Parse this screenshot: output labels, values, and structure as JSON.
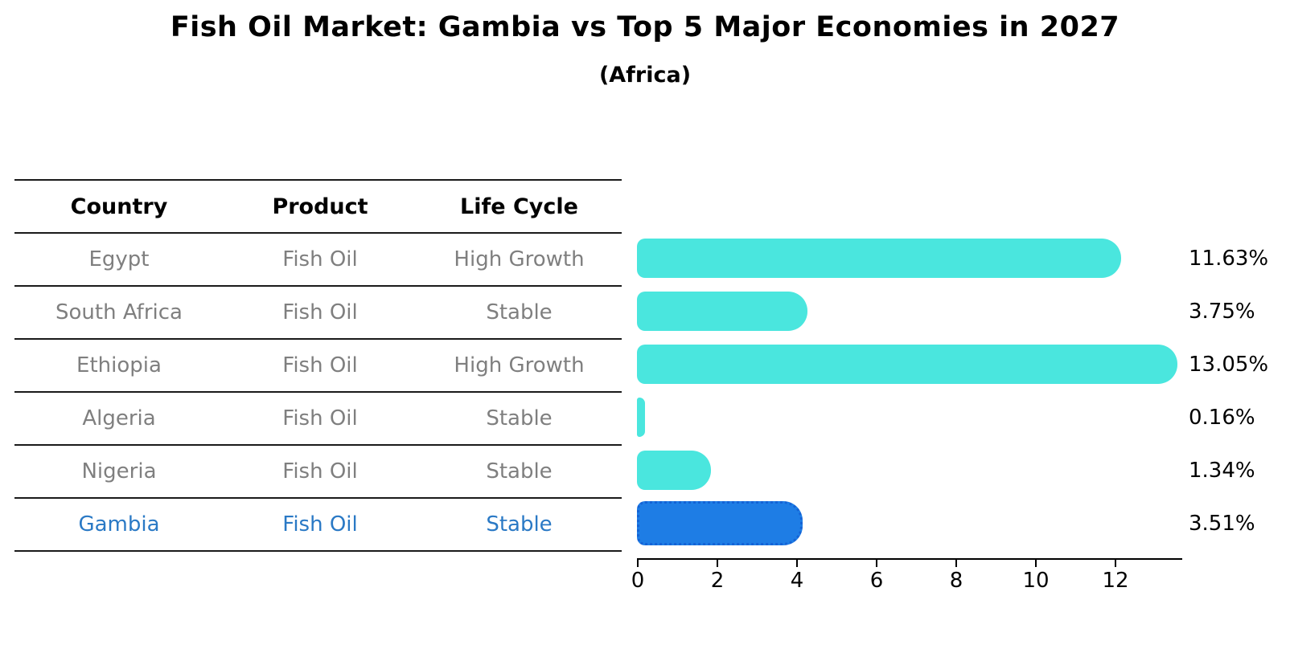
{
  "title": "Fish Oil Market: Gambia vs Top 5 Major Economies in 2027",
  "subtitle": "(Africa)",
  "table": {
    "headers": [
      "Country",
      "Product",
      "Life Cycle"
    ],
    "rows": [
      {
        "country": "Egypt",
        "product": "Fish Oil",
        "life_cycle": "High Growth",
        "highlight": false
      },
      {
        "country": "South Africa",
        "product": "Fish Oil",
        "life_cycle": "Stable",
        "highlight": false
      },
      {
        "country": "Ethiopia",
        "product": "Fish Oil",
        "life_cycle": "High Growth",
        "highlight": false
      },
      {
        "country": "Algeria",
        "product": "Fish Oil",
        "life_cycle": "Stable",
        "highlight": false
      },
      {
        "country": "Nigeria",
        "product": "Fish Oil",
        "life_cycle": "Stable",
        "highlight": false
      },
      {
        "country": "Gambia",
        "product": "Fish Oil",
        "life_cycle": "Stable",
        "highlight": true
      }
    ]
  },
  "chart_data": {
    "type": "bar",
    "orientation": "horizontal",
    "title": "Fish Oil Market: Gambia vs Top 5 Major Economies in 2027",
    "subtitle": "(Africa)",
    "categories": [
      "Egypt",
      "South Africa",
      "Ethiopia",
      "Algeria",
      "Nigeria",
      "Gambia"
    ],
    "values": [
      11.63,
      3.75,
      13.05,
      0.16,
      1.34,
      3.51
    ],
    "value_labels": [
      "11.63%",
      "3.75%",
      "13.05%",
      "0.16%",
      "1.34%",
      "3.51%"
    ],
    "x_ticks": [
      0,
      2,
      4,
      6,
      8,
      10,
      12
    ],
    "xlim": [
      0,
      13.66
    ],
    "grid": false,
    "legend": "none",
    "highlight_index": 5
  },
  "colors": {
    "bar": "#4ae6de",
    "highlight_bar": "#1e7de5",
    "highlight_border": "#1463d6",
    "highlight_text": "#2a79c5",
    "table_text": "#7f7f7f",
    "axis": "#000000"
  }
}
